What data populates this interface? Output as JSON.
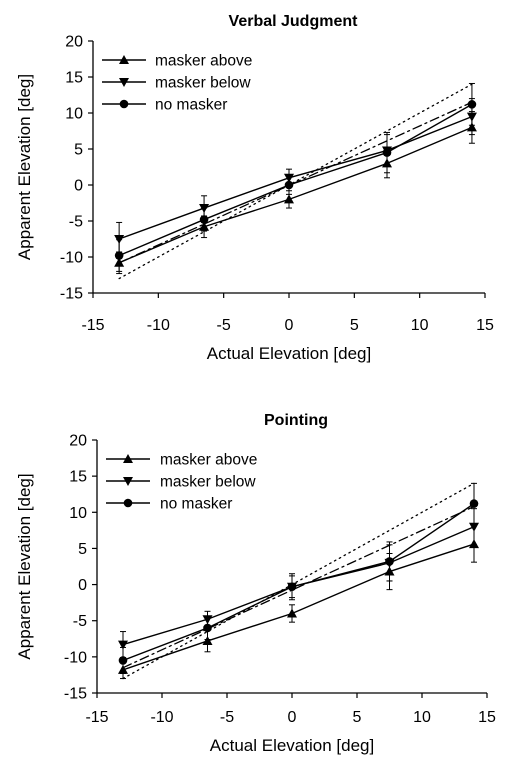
{
  "chart_data": [
    {
      "type": "line",
      "title": "Verbal Judgment",
      "xlabel": "Actual Elevation [deg]",
      "ylabel": "Apparent Elevation [deg]",
      "xlim": [
        -15,
        15
      ],
      "ylim": [
        -15,
        20
      ],
      "xticks": [
        -15,
        -10,
        -5,
        0,
        5,
        10,
        15
      ],
      "yticks": [
        -15,
        -10,
        -5,
        0,
        5,
        10,
        15,
        20
      ],
      "x": [
        -13,
        -6.5,
        0,
        7.5,
        14
      ],
      "series": [
        {
          "name": "masker above",
          "marker": "triangle-up",
          "values": [
            -10.8,
            -5.8,
            -2,
            3,
            8
          ],
          "errors": [
            1.5,
            1.5,
            1.2,
            2,
            2.2
          ]
        },
        {
          "name": "masker below",
          "marker": "triangle-down",
          "values": [
            -7.5,
            -3.2,
            1,
            4.8,
            9.5
          ],
          "errors": [
            2.3,
            1.7,
            1.2,
            2.2,
            2.5
          ]
        },
        {
          "name": "no masker",
          "marker": "circle",
          "values": [
            -9.8,
            -4.8,
            0,
            4.5,
            11.2
          ],
          "errors": [
            2.2,
            1.6,
            1.3,
            2.8,
            2.9
          ]
        }
      ],
      "reference_lines": [
        {
          "style": "dotted",
          "x": [
            -13,
            14
          ],
          "y": [
            -13,
            14
          ]
        },
        {
          "style": "dash-dot",
          "x": [
            -13,
            14
          ],
          "y": [
            -10.8,
            11.5
          ]
        }
      ],
      "legend_position": "top-left"
    },
    {
      "type": "line",
      "title": "Pointing",
      "xlabel": "Actual Elevation [deg]",
      "ylabel": "Apparent Elevation [deg]",
      "xlim": [
        -15,
        15
      ],
      "ylim": [
        -15,
        20
      ],
      "xticks": [
        -15,
        -10,
        -5,
        0,
        5,
        10,
        15
      ],
      "yticks": [
        -15,
        -10,
        -5,
        0,
        5,
        10,
        15,
        20
      ],
      "x": [
        -13,
        -6.5,
        0,
        7.5,
        14
      ],
      "series": [
        {
          "name": "masker above",
          "marker": "triangle-up",
          "values": [
            -11.8,
            -7.8,
            -4,
            1.8,
            5.6
          ],
          "errors": [
            1.2,
            1.5,
            1.2,
            2.5,
            2.5
          ]
        },
        {
          "name": "masker below",
          "marker": "triangle-down",
          "values": [
            -8.3,
            -4.8,
            -0.3,
            3,
            8
          ],
          "errors": [
            1.8,
            1.1,
            1.5,
            2.5,
            2.5
          ]
        },
        {
          "name": "no masker",
          "marker": "circle",
          "values": [
            -10.5,
            -6,
            -0.3,
            3.2,
            11.2
          ],
          "errors": [
            1.8,
            1.6,
            1.8,
            2.7,
            2.8
          ]
        }
      ],
      "reference_lines": [
        {
          "style": "dotted",
          "x": [
            -13,
            14
          ],
          "y": [
            -13,
            14
          ]
        },
        {
          "style": "dash-dot",
          "x": [
            -13,
            14
          ],
          "y": [
            -11.5,
            10.8
          ]
        }
      ],
      "legend_position": "top-left"
    }
  ]
}
